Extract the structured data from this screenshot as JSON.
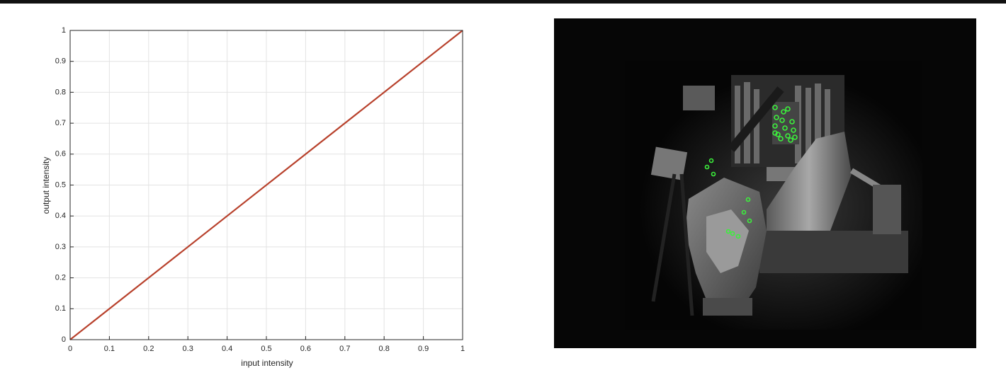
{
  "chart_data": {
    "type": "line",
    "x": [
      0,
      1
    ],
    "values": [
      0,
      1
    ],
    "color": "#b8412c",
    "x_label": "input intensity",
    "y_label": "output intensity",
    "xlim": [
      0,
      1
    ],
    "ylim": [
      0,
      1
    ],
    "xticks": [
      0,
      0.1,
      0.2,
      0.3,
      0.4,
      0.5,
      0.6,
      0.7,
      0.8,
      0.9,
      1
    ],
    "yticks": [
      0,
      0.1,
      0.2,
      0.3,
      0.4,
      0.5,
      0.6,
      0.7,
      0.8,
      0.9,
      1
    ],
    "grid": true
  }
}
